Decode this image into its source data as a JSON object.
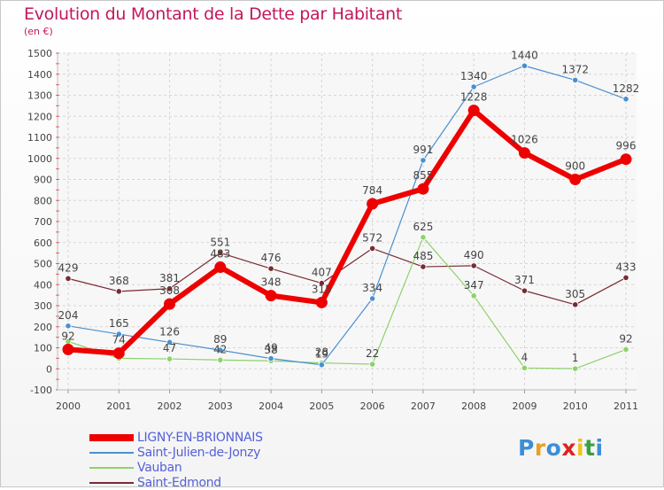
{
  "title": "Evolution du Montant de la Dette par Habitant",
  "subtitle": "(en €)",
  "logo": {
    "letters": [
      "P",
      "r",
      "o",
      "x",
      "i",
      "t",
      "i"
    ],
    "colors": [
      "#3a8fd6",
      "#e8a020",
      "#3a8fd6",
      "#e02020",
      "#f0c020",
      "#3aa040",
      "#3a8fd6"
    ]
  },
  "chart_data": {
    "type": "line",
    "x": [
      "2000",
      "2001",
      "2002",
      "2003",
      "2004",
      "2005",
      "2006",
      "2007",
      "2008",
      "2009",
      "2010",
      "2011"
    ],
    "ylim": [
      -100,
      1500
    ],
    "yticks": [
      -100,
      0,
      100,
      200,
      300,
      400,
      500,
      600,
      700,
      800,
      900,
      1000,
      1100,
      1200,
      1300,
      1400,
      1500
    ],
    "grid": true,
    "legend_position": "bottom-left",
    "series": [
      {
        "name": "Saint-Edmond",
        "color": "#7a2a32",
        "width": 1.2,
        "marker_r": 3.2,
        "values": [
          429,
          368,
          381,
          551,
          476,
          407,
          572,
          485,
          490,
          371,
          305,
          433
        ],
        "labels": [
          "429",
          "368",
          "381",
          "551",
          "476",
          "407",
          "572",
          "485",
          "490",
          "371",
          "305",
          "433"
        ]
      },
      {
        "name": "Vauban",
        "color": "#8cd26a",
        "width": 1.2,
        "marker_r": 3.2,
        "values": [
          130,
          50,
          47,
          42,
          38,
          28,
          22,
          625,
          347,
          4,
          1,
          92
        ],
        "labels": [
          "",
          "",
          "47",
          "42",
          "38",
          "28",
          "22",
          "625",
          "347",
          "4",
          "1",
          "92"
        ]
      },
      {
        "name": "Saint-Julien-de-Jonzy",
        "color": "#4a90d0",
        "width": 1.2,
        "marker_r": 3.2,
        "values": [
          204,
          165,
          126,
          89,
          49,
          19,
          334,
          991,
          1340,
          1440,
          1372,
          1282
        ],
        "labels": [
          "204",
          "165",
          "126",
          "89",
          "49",
          "19",
          "334",
          "991",
          "1340",
          "1440",
          "1372",
          "1282"
        ]
      },
      {
        "name": "LIGNY-EN-BRIONNAIS",
        "color": "#ee0000",
        "width": 6,
        "marker_r": 6.5,
        "values": [
          92,
          74,
          308,
          483,
          348,
          315,
          784,
          855,
          1228,
          1026,
          900,
          996
        ],
        "labels": [
          "92",
          "74",
          "308",
          "483",
          "348",
          "315",
          "784",
          "855",
          "1228",
          "1026",
          "900",
          "996"
        ]
      }
    ],
    "legend": [
      {
        "name": "LIGNY-EN-BRIONNAIS",
        "color": "#ee0000",
        "thickness": 8
      },
      {
        "name": "Saint-Julien-de-Jonzy",
        "color": "#4a90d0",
        "thickness": 2
      },
      {
        "name": "Vauban",
        "color": "#8cd26a",
        "thickness": 2
      },
      {
        "name": "Saint-Edmond",
        "color": "#7a2a32",
        "thickness": 2
      }
    ]
  }
}
